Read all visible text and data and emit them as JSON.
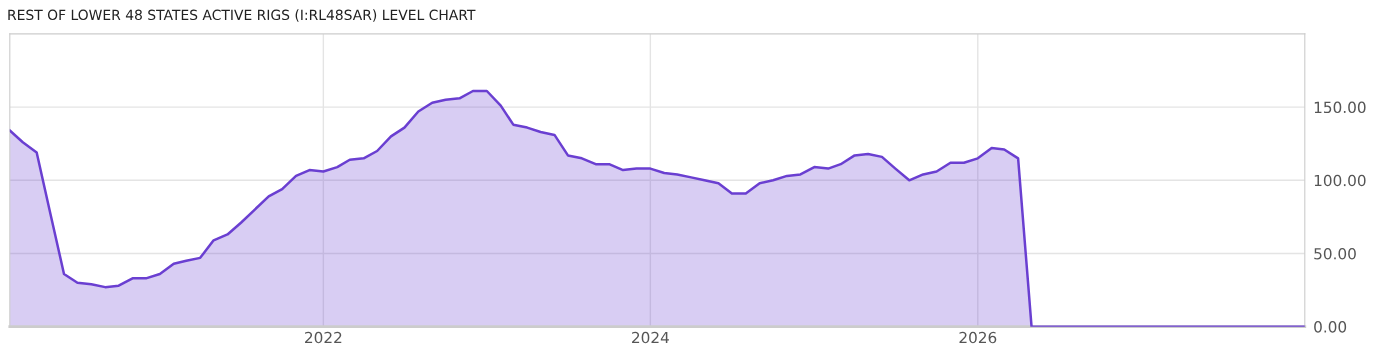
{
  "chart_data": {
    "type": "area",
    "title": "REST OF LOWER 48 STATES ACTIVE RIGS (I:RL48SAR) LEVEL CHART",
    "x": [
      "2020-02",
      "2020-03",
      "2020-04",
      "2020-05",
      "2020-06",
      "2020-07",
      "2020-08",
      "2020-09",
      "2020-10",
      "2020-11",
      "2020-12",
      "2021-01",
      "2021-02",
      "2021-03",
      "2021-04",
      "2021-05",
      "2021-06",
      "2021-07",
      "2021-08",
      "2021-09",
      "2021-10",
      "2021-11",
      "2021-12",
      "2022-01",
      "2022-02",
      "2022-03",
      "2022-04",
      "2022-05",
      "2022-06",
      "2022-07",
      "2022-08",
      "2022-09",
      "2022-10",
      "2022-11",
      "2022-12",
      "2023-01",
      "2023-02",
      "2023-03",
      "2023-04",
      "2023-05",
      "2023-06",
      "2023-07",
      "2023-08",
      "2023-09",
      "2023-10",
      "2023-11",
      "2023-12",
      "2024-01",
      "2024-02",
      "2024-03",
      "2024-04",
      "2024-05",
      "2024-06",
      "2024-07",
      "2024-08",
      "2024-09",
      "2024-10",
      "2024-11",
      "2024-12",
      "2025-01",
      "2025-02",
      "2025-03",
      "2025-04",
      "2025-05",
      "2025-06",
      "2025-07",
      "2025-08",
      "2025-09",
      "2025-10",
      "2025-11",
      "2025-12",
      "2026-01",
      "2026-02",
      "2026-03",
      "2026-04",
      "2026-05",
      "2028-01"
    ],
    "series": [
      {
        "color": "#6a3fd1",
        "values": [
          134,
          126,
          119,
          78,
          36,
          30,
          29,
          27,
          28,
          33,
          33,
          36,
          43,
          45,
          47,
          59,
          63,
          71,
          80,
          89,
          94,
          103,
          107,
          106,
          109,
          114,
          115,
          120,
          130,
          136,
          147,
          153,
          155,
          156,
          161,
          161,
          151,
          138,
          136,
          133,
          131,
          117,
          115,
          111,
          111,
          107,
          108,
          108,
          105,
          104,
          102,
          100,
          98,
          91,
          91,
          98,
          100,
          103,
          104,
          109,
          108,
          111,
          117,
          118,
          116,
          108,
          100,
          104,
          106,
          112,
          112,
          115,
          122,
          121,
          115,
          0,
          0
        ]
      }
    ],
    "xlim": [
      "2020-02",
      "2028-01"
    ],
    "xticks": [
      {
        "value": "2022",
        "label": "2022"
      },
      {
        "value": "2024",
        "label": "2024"
      },
      {
        "value": "2026",
        "label": "2026"
      }
    ],
    "ylim": [
      0,
      200
    ],
    "yticks": [
      {
        "value": 0,
        "label": "0.00"
      },
      {
        "value": 50,
        "label": "50.00"
      },
      {
        "value": 100,
        "label": "100.00"
      },
      {
        "value": 150,
        "label": "150.00"
      }
    ],
    "grid": true,
    "legend": false
  }
}
